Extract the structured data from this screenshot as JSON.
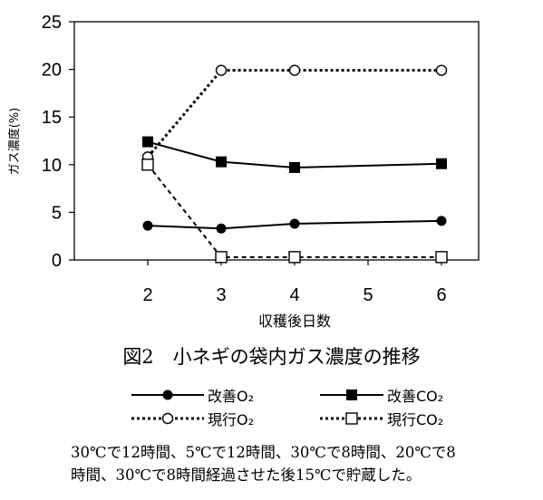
{
  "chart_data": {
    "type": "line",
    "title": "",
    "xlabel": "収穫後日数",
    "ylabel": "ガス濃度(%)",
    "categories": [
      "2",
      "3",
      "4",
      "5",
      "6"
    ],
    "y_ticks": [
      "25",
      "20",
      "15",
      "10",
      "5",
      "0"
    ],
    "ylim": [
      0,
      25
    ],
    "grid": false,
    "legend_position": "bottom",
    "series": [
      {
        "name": "改善O2",
        "x": [
          2,
          3,
          4,
          6
        ],
        "values": [
          3.6,
          3.3,
          3.8,
          4.1
        ],
        "line": "solid",
        "marker": "filled-circle",
        "color": "#000000"
      },
      {
        "name": "改善CO2",
        "x": [
          2,
          3,
          4,
          6
        ],
        "values": [
          12.4,
          10.3,
          9.7,
          10.1
        ],
        "line": "solid",
        "marker": "filled-square",
        "color": "#000000"
      },
      {
        "name": "現行O2",
        "x": [
          2,
          3,
          4,
          6
        ],
        "values": [
          10.8,
          19.9,
          19.9,
          19.9
        ],
        "line": "dotted",
        "marker": "open-circle",
        "color": "#000000"
      },
      {
        "name": "現行CO2",
        "x": [
          2,
          3,
          4,
          6
        ],
        "values": [
          10.0,
          0.3,
          0.3,
          0.3
        ],
        "line": "dashed",
        "marker": "open-square",
        "color": "#000000"
      }
    ]
  },
  "caption": "図2　小ネギの袋内ガス濃度の推移",
  "legend": {
    "kaizen_o2": "改善O₂",
    "kaizen_co2": "改善CO₂",
    "genko_o2": "現行O₂",
    "genko_co2": "現行CO₂"
  },
  "note": {
    "line1": "30℃で12時間、5℃で12時間、30℃で8時間、20℃で8",
    "line2": "時間、30℃で8時間経過させた後15℃で貯蔵した。"
  }
}
